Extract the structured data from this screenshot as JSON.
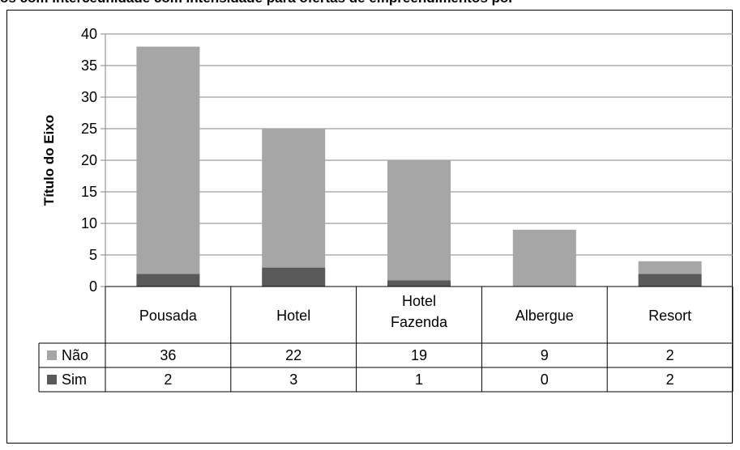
{
  "caption_fragment": "os com interceunidade com intensidade  para ofertas de empreendimentos por",
  "chart_data": {
    "type": "bar",
    "stacked": true,
    "categories": [
      "Pousada",
      "Hotel",
      "Hotel Fazenda",
      "Albergue",
      "Resort"
    ],
    "series": [
      {
        "name": "Sim",
        "values": [
          2,
          3,
          1,
          0,
          2
        ],
        "color": "#595959"
      },
      {
        "name": "Não",
        "values": [
          36,
          22,
          19,
          9,
          2
        ],
        "color": "#a6a6a6"
      }
    ],
    "ylabel": "Título do Eixo",
    "xlabel": "",
    "ylim": [
      0,
      40
    ],
    "yticks": [
      0,
      5,
      10,
      15,
      20,
      25,
      30,
      35,
      40
    ],
    "grid": true,
    "legend": "data-table"
  }
}
